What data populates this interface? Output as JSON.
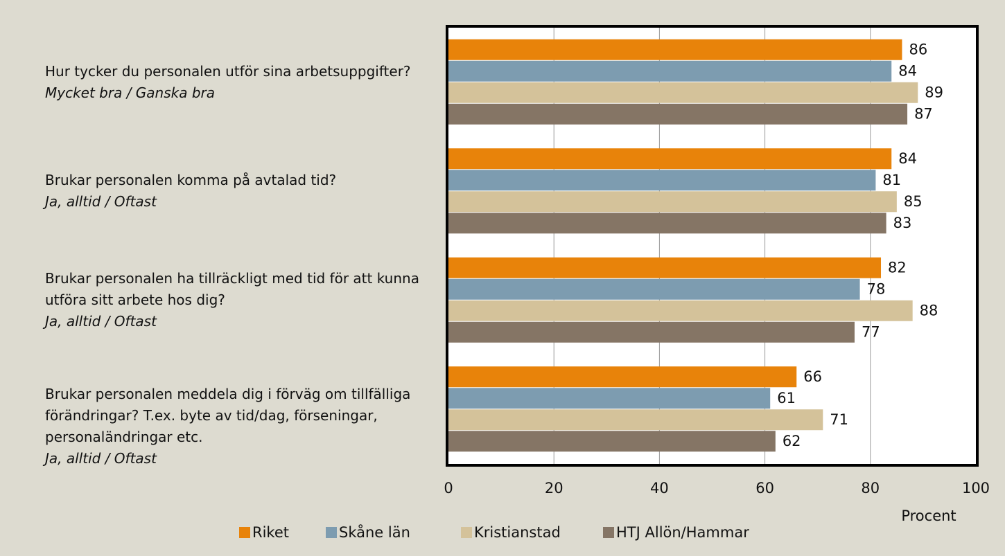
{
  "chart_data": {
    "type": "bar",
    "orientation": "horizontal",
    "categories": [
      "Hur tycker du personalen utför sina arbetsuppgifter?",
      "Brukar personalen komma på avtalad tid?",
      "Brukar personalen ha tillräckligt med tid för att kunna utföra sitt arbete hos dig?",
      "Brukar personalen meddela dig i förväg om tillfälliga förändringar? T.ex. byte av tid/dag, förseningar, personaländringar etc."
    ],
    "category_answers": [
      "Mycket bra / Ganska bra",
      "Ja, alltid / Oftast",
      "Ja, alltid / Oftast",
      "Ja, alltid / Oftast"
    ],
    "series": [
      {
        "name": "Riket",
        "color": "#e8830a",
        "values": [
          86,
          84,
          82,
          66
        ]
      },
      {
        "name": "Skåne län",
        "color": "#7d9cb0",
        "values": [
          84,
          81,
          78,
          61
        ]
      },
      {
        "name": "Kristianstad",
        "color": "#d4c29a",
        "values": [
          89,
          85,
          88,
          71
        ]
      },
      {
        "name": "HTJ Allön/Hammar",
        "color": "#857565",
        "values": [
          87,
          83,
          77,
          62
        ]
      }
    ],
    "x_label": "Procent",
    "xlim": [
      0,
      100
    ],
    "xticks": [
      0,
      20,
      40,
      60,
      80,
      100
    ],
    "grid": true,
    "legend": "bottom"
  }
}
